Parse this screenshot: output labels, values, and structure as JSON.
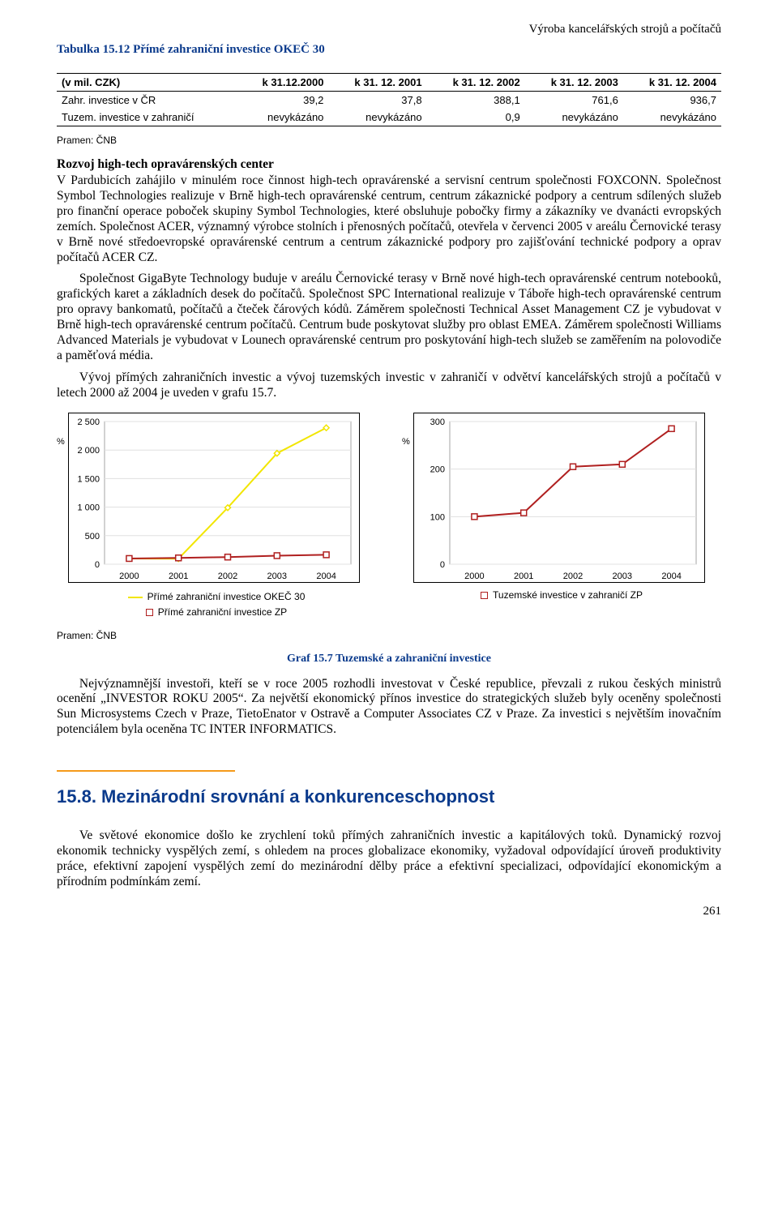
{
  "running_head": "Výroba kancelářských strojů a počítačů",
  "table": {
    "caption": "Tabulka 15.12 Přímé zahraniční investice OKEČ 30",
    "columns": [
      "(v mil. CZK)",
      "k 31.12.2000",
      "k 31. 12. 2001",
      "k 31. 12. 2002",
      "k 31. 12. 2003",
      "k 31. 12. 2004"
    ],
    "rows": [
      [
        "Zahr. investice v ČR",
        "39,2",
        "37,8",
        "388,1",
        "761,6",
        "936,7"
      ],
      [
        "Tuzem. investice v zahraničí",
        "nevykázáno",
        "nevykázáno",
        "0,9",
        "nevykázáno",
        "nevykázáno"
      ]
    ],
    "header_fontsize": 13,
    "cell_fontsize": 13,
    "border_color": "#000000"
  },
  "source_label": "Pramen: ČNB",
  "subhead": "Rozvoj high-tech opravárenských center",
  "paragraphs": {
    "p1": "V Pardubicích zahájilo v minulém roce činnost high-tech opravárenské a servisní centrum společnosti FOXCONN. Společnost Symbol Technologies realizuje v Brně high-tech opravárenské centrum, centrum zákaznické podpory a centrum sdílených služeb pro finanční operace poboček skupiny Symbol Technologies, které obsluhuje pobočky firmy a zákazníky ve dvanácti evropských zemích. Společnost ACER, významný výrobce stolních i přenosných počítačů, otevřela v červenci 2005 v areálu Černovické terasy v Brně nové středoevropské opravárenské centrum a centrum zákaznické podpory pro zajišťování technické podpory a oprav počítačů ACER CZ.",
    "p2": "Společnost GigaByte Technology buduje v areálu Černovické terasy v Brně nové high-tech opravárenské centrum notebooků, grafických karet a základních desek do počítačů. Společnost SPC International realizuje v Táboře high-tech opravárenské centrum pro opravy bankomatů, počítačů a čteček čárových kódů. Záměrem společnosti Technical Asset Management CZ je vybudovat v Brně high-tech opravárenské centrum počítačů. Centrum bude poskytovat služby pro oblast EMEA. Záměrem společnosti Williams Advanced Materials je vybudovat v Lounech opravárenské centrum pro poskytování high-tech služeb se zaměřením na polovodiče a paměťová média.",
    "p3": "Vývoj přímých zahraničních investic a vývoj tuzemských investic v zahraničí v odvětví kancelářských strojů a počítačů v letech 2000 až 2004 je uveden v grafu 15.7."
  },
  "chart_left": {
    "type": "line",
    "ylabel": "%",
    "xticks": [
      "2000",
      "2001",
      "2002",
      "2003",
      "2004"
    ],
    "ylim": [
      0,
      2500
    ],
    "yticks": [
      0,
      500,
      1000,
      1500,
      2000,
      2500
    ],
    "grid_color": "#e0e0e0",
    "background_color": "#ffffff",
    "border_color": "#000000",
    "series": [
      {
        "name": "Přímé zahraniční investice OKEČ 30",
        "color": "#f2e600",
        "marker": "diamond",
        "marker_size": 7,
        "line_width": 2,
        "values": [
          100,
          96,
          990,
          1943,
          2390
        ]
      },
      {
        "name": "Přímé zahraniční investice ZP",
        "color": "#b02020",
        "marker": "square",
        "marker_size": 7,
        "line_width": 2,
        "values": [
          100,
          110,
          125,
          150,
          165
        ]
      }
    ],
    "legend_items": [
      {
        "label": "Přímé zahraniční investice OKEČ 30",
        "color": "#f2e600",
        "marker": "diamond"
      },
      {
        "label": "Přímé zahraniční investice ZP",
        "color": "#b02020",
        "marker": "square"
      }
    ]
  },
  "chart_right": {
    "type": "line",
    "ylabel": "%",
    "xticks": [
      "2000",
      "2001",
      "2002",
      "2003",
      "2004"
    ],
    "ylim": [
      0,
      300
    ],
    "yticks": [
      0,
      100,
      200,
      300
    ],
    "grid_color": "#e0e0e0",
    "background_color": "#ffffff",
    "border_color": "#000000",
    "series": [
      {
        "name": "Tuzemské investice v zahraničí ZP",
        "color": "#b02020",
        "marker": "square",
        "marker_size": 7,
        "line_width": 2,
        "values": [
          100,
          108,
          205,
          210,
          285
        ]
      }
    ],
    "legend_items": [
      {
        "label": "Tuzemské investice v zahraničí ZP",
        "color": "#b02020",
        "marker": "square"
      }
    ]
  },
  "figure_caption": "Graf 15.7 Tuzemské a zahraniční investice",
  "paragraphs_after": {
    "p4": "Nejvýznamnější investoři, kteří se v roce 2005 rozhodli investovat v České republice, převzali z rukou českých ministrů ocenění „INVESTOR ROKU 2005“. Za největší ekonomický přínos investice do strategických služeb byly oceněny společnosti Sun Microsystems Czech v Praze, TietoEnator v Ostravě a Computer Associates CZ v Praze. Za investici s největším inovačním potenciálem byla oceněna TC INTER INFORMATICS."
  },
  "section": {
    "title": "15.8. Mezinárodní srovnání a konkurenceschopnost",
    "p5": "Ve světové ekonomice došlo ke zrychlení toků přímých zahraničních investic a kapitálových toků. Dynamický rozvoj ekonomik technicky vyspělých zemí, s ohledem na proces globalizace ekonomiky, vyžadoval odpovídající úroveň produktivity práce, efektivní zapojení vyspělých zemí do mezinárodní dělby práce a efektivní specializaci, odpovídající ekonomickým a přírodním podmínkám zemí."
  },
  "page_number": "261",
  "colors": {
    "accent_blue": "#0a3a8c",
    "accent_orange": "#f59a1a",
    "text": "#000000",
    "background": "#ffffff"
  }
}
